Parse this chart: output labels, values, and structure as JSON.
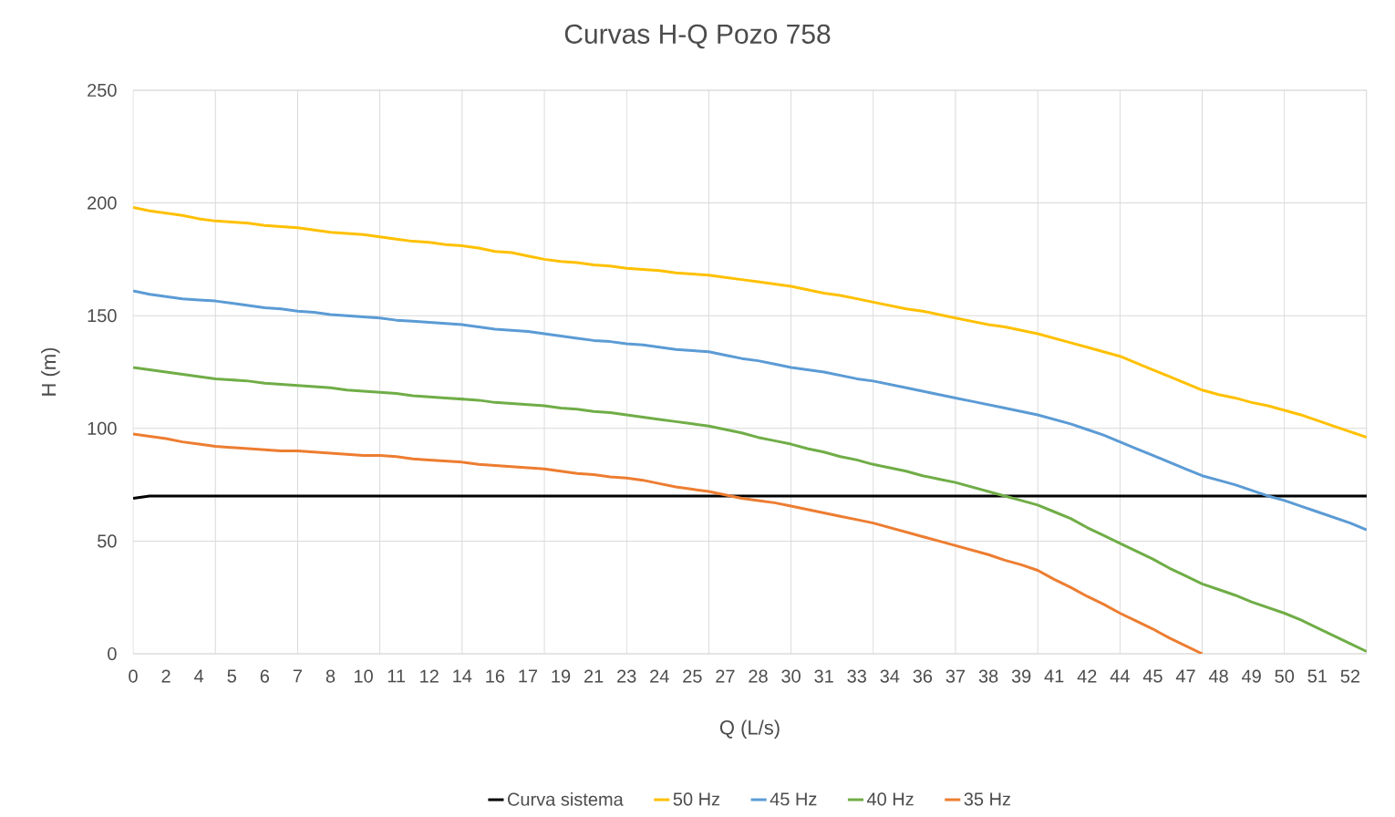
{
  "chart_data": {
    "type": "line",
    "title": "Curvas H-Q Pozo 758",
    "xlabel": "Q (L/s)",
    "ylabel": "H (m)",
    "categories": [
      "0",
      null,
      "2",
      null,
      "4",
      null,
      "5",
      null,
      "6",
      null,
      "7",
      null,
      "8",
      null,
      "10",
      null,
      "11",
      null,
      "12",
      null,
      "14",
      null,
      "16",
      null,
      "17",
      null,
      "19",
      null,
      "21",
      null,
      "23",
      null,
      "24",
      null,
      "25",
      null,
      "27",
      null,
      "28",
      null,
      "30",
      null,
      "31",
      null,
      "33",
      null,
      "34",
      null,
      "36",
      null,
      "37",
      null,
      "38",
      null,
      "39",
      null,
      "41",
      null,
      "42",
      null,
      "44",
      null,
      "45",
      null,
      "47",
      null,
      "48",
      null,
      "49",
      null,
      "50",
      null,
      "51",
      null,
      "52",
      null
    ],
    "series": [
      {
        "name": "Curva sistema",
        "color": "#000000",
        "values": [
          69,
          70,
          70,
          70,
          70,
          70,
          70,
          70,
          70,
          70,
          70,
          70,
          70,
          70,
          70,
          70,
          70,
          70,
          70,
          70,
          70,
          70,
          70,
          70,
          70,
          70,
          70,
          70,
          70,
          70,
          70,
          70,
          70,
          70,
          70,
          70,
          70,
          70,
          70,
          70,
          70,
          70,
          70,
          70,
          70,
          70,
          70,
          70,
          70,
          70,
          70,
          70,
          70,
          70,
          70,
          70,
          70,
          70,
          70,
          70,
          70,
          70,
          70,
          70,
          70,
          70,
          70,
          70,
          70,
          70,
          70,
          70,
          70,
          70,
          70,
          70
        ]
      },
      {
        "name": "50 Hz",
        "color": "#ffc000",
        "values": [
          198,
          196.5,
          195.5,
          194.5,
          193,
          192,
          191.5,
          191,
          190,
          189.5,
          189,
          188,
          187,
          186.5,
          186,
          185,
          184,
          183,
          182.5,
          181.5,
          181,
          180,
          178.5,
          178,
          176.5,
          175,
          174,
          173.5,
          172.5,
          172,
          171,
          170.5,
          170,
          169,
          168.5,
          168,
          167,
          166,
          165,
          164,
          163,
          161.5,
          160,
          159,
          157.5,
          156,
          154.5,
          153,
          152,
          150.5,
          149,
          147.5,
          146,
          145,
          143.5,
          142,
          140,
          138,
          136,
          134,
          132,
          129,
          126,
          123,
          120,
          117,
          115,
          113.5,
          111.5,
          110,
          108,
          106,
          103.5,
          101,
          98.5,
          96
        ]
      },
      {
        "name": "45 Hz",
        "color": "#5b9bd5",
        "values": [
          161,
          159.5,
          158.5,
          157.5,
          157,
          156.5,
          155.5,
          154.5,
          153.5,
          153,
          152,
          151.5,
          150.5,
          150,
          149.5,
          149,
          148,
          147.5,
          147,
          146.5,
          146,
          145,
          144,
          143.5,
          143,
          142,
          141,
          140,
          139,
          138.5,
          137.5,
          137,
          136,
          135,
          134.5,
          134,
          132.5,
          131,
          130,
          128.5,
          127,
          126,
          125,
          123.5,
          122,
          121,
          119.5,
          118,
          116.5,
          115,
          113.5,
          112,
          110.5,
          109,
          107.5,
          106,
          104,
          102,
          99.5,
          97,
          94,
          91,
          88,
          85,
          82,
          79,
          77,
          75,
          72.5,
          70,
          68,
          65.5,
          63,
          60.5,
          58,
          55
        ]
      },
      {
        "name": "40 Hz",
        "color": "#70ad47",
        "values": [
          127,
          126,
          125,
          124,
          123,
          122,
          121.5,
          121,
          120,
          119.5,
          119,
          118.5,
          118,
          117,
          116.5,
          116,
          115.5,
          114.5,
          114,
          113.5,
          113,
          112.5,
          111.5,
          111,
          110.5,
          110,
          109,
          108.5,
          107.5,
          107,
          106,
          105,
          104,
          103,
          102,
          101,
          99.5,
          98,
          96,
          94.5,
          93,
          91,
          89.5,
          87.5,
          86,
          84,
          82.5,
          81,
          79,
          77.5,
          76,
          74,
          72,
          70,
          68,
          66,
          63,
          60,
          56,
          52.5,
          49,
          45.5,
          42,
          38,
          34.5,
          31,
          28.5,
          26,
          23,
          20.5,
          18,
          15,
          11.5,
          8,
          4.5,
          1
        ]
      },
      {
        "name": "35 Hz",
        "color": "#ed7d31",
        "values": [
          97.5,
          96.5,
          95.5,
          94,
          93,
          92,
          91.5,
          91,
          90.5,
          90,
          90,
          89.5,
          89,
          88.5,
          88,
          88,
          87.5,
          86.5,
          86,
          85.5,
          85,
          84,
          83.5,
          83,
          82.5,
          82,
          81,
          80,
          79.5,
          78.5,
          78,
          77,
          75.5,
          74,
          73,
          72,
          70.5,
          69,
          68,
          67,
          65.5,
          64,
          62.5,
          61,
          59.5,
          58,
          56,
          54,
          52,
          50,
          48,
          46,
          44,
          41.5,
          39.5,
          37,
          33,
          29.5,
          25.5,
          22,
          18,
          14.5,
          11,
          7,
          3.5,
          0,
          null,
          null,
          null,
          null,
          null,
          null,
          null,
          null,
          null,
          null
        ]
      }
    ],
    "ylim": [
      0,
      250
    ],
    "yticks": [
      0,
      50,
      100,
      150,
      200,
      250
    ],
    "grid": true,
    "legend": "bottom"
  }
}
